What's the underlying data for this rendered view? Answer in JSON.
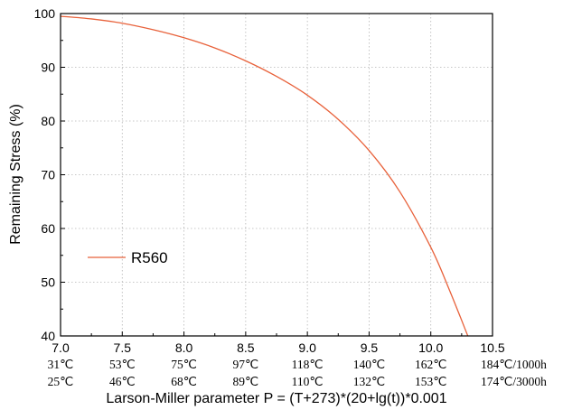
{
  "chart_data": {
    "type": "line",
    "xlabel": "Larson-Miller parameter  P = (T+273)*(20+lg(t))*0.001",
    "ylabel": "Remaining Stress (%)",
    "xlim": [
      7.0,
      10.5
    ],
    "ylim": [
      40,
      100
    ],
    "x_ticks": [
      "7.0",
      "7.5",
      "8.0",
      "8.5",
      "9.0",
      "9.5",
      "10.0",
      "10.5"
    ],
    "y_ticks": [
      "40",
      "50",
      "60",
      "70",
      "80",
      "90",
      "100"
    ],
    "temp_labels_1000h": [
      "31℃",
      "53℃",
      "75℃",
      "97℃",
      "118℃",
      "140℃",
      "162℃",
      "184℃/1000h"
    ],
    "temp_labels_3000h": [
      "25℃",
      "46℃",
      "68℃",
      "89℃",
      "110℃",
      "132℃",
      "153℃",
      "174℃/3000h"
    ],
    "grid": true,
    "legend_position": "middle-left",
    "series": [
      {
        "name": "R560",
        "color": "#e8613a",
        "x": [
          7.0,
          7.25,
          7.5,
          7.75,
          8.0,
          8.25,
          8.5,
          8.75,
          9.0,
          9.25,
          9.5,
          9.75,
          10.0,
          10.15,
          10.3
        ],
        "y": [
          99.5,
          99.0,
          98.2,
          97.0,
          95.5,
          93.6,
          91.2,
          88.3,
          84.8,
          80.3,
          74.5,
          66.8,
          56.5,
          48.6,
          40.0
        ]
      }
    ]
  }
}
